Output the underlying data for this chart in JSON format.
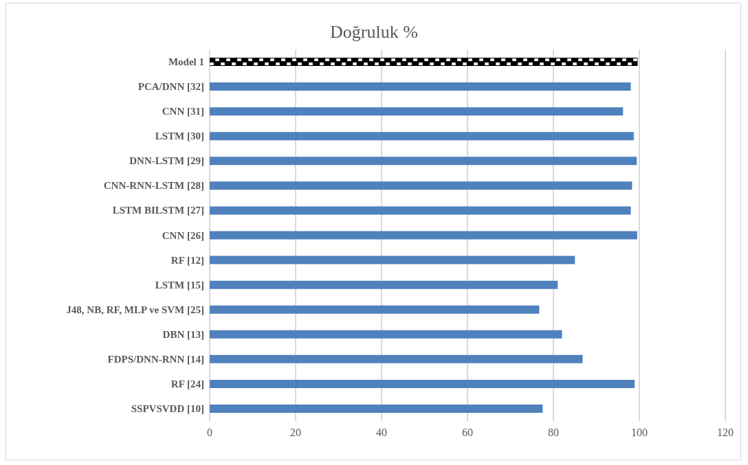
{
  "chart_data": {
    "type": "bar",
    "orientation": "horizontal",
    "title": "Doğruluk %",
    "categories": [
      "Model 1",
      "PCA/DNN [32]",
      "CNN [31]",
      "LSTM [30]",
      "DNN-LSTM [29]",
      "CNN-RNN-LSTM [28]",
      "LSTM BILSTM [27]",
      "CNN [26]",
      "RF [12]",
      "LSTM [15]",
      "J48, NB, RF, MLP ve SVM [25]",
      "DBN [13]",
      "FDPS/DNN-RNN [14]",
      "RF [24]",
      "SSPVSVDD [10]"
    ],
    "values": [
      99.6,
      98.0,
      96.2,
      98.7,
      99.4,
      98.3,
      98.0,
      99.5,
      85.0,
      81.0,
      76.7,
      82.0,
      86.8,
      98.9,
      77.5
    ],
    "colors": [
      "#000000",
      "#4f81bd",
      "#4f81bd",
      "#4f81bd",
      "#4f81bd",
      "#4f81bd",
      "#4f81bd",
      "#4f81bd",
      "#4f81bd",
      "#4f81bd",
      "#4f81bd",
      "#4f81bd",
      "#4f81bd",
      "#4f81bd",
      "#4f81bd"
    ],
    "xlim": [
      0,
      120
    ],
    "xticks": [
      0,
      20,
      40,
      60,
      80,
      100,
      120
    ],
    "grid": "x"
  }
}
